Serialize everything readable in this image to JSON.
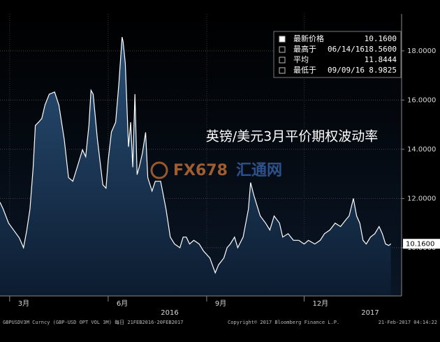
{
  "chart_data": {
    "type": "area",
    "title": "英镑/美元3月平价期权波动率",
    "watermark": [
      "FX678",
      "汇通网"
    ],
    "series": [
      {
        "name": "GBPUSDV3M Curncy",
        "color": "#ffffff",
        "x": [
          0,
          3,
          8,
          13,
          18,
          22,
          25,
          28,
          31,
          33,
          36,
          39,
          42,
          46,
          51,
          55,
          60,
          64,
          68,
          73,
          77,
          80,
          83,
          85,
          87,
          91,
          96,
          99,
          101,
          104,
          108,
          111,
          114,
          115,
          117,
          120,
          122,
          124,
          126,
          128,
          130,
          133,
          136,
          138,
          142,
          145,
          150,
          155,
          159,
          163,
          168,
          171,
          174,
          177,
          181,
          186,
          190,
          196,
          201,
          204,
          209,
          212,
          215,
          219,
          222,
          227,
          232,
          234,
          237,
          240,
          243,
          248,
          252,
          256,
          261,
          264,
          269,
          274,
          279,
          284,
          288,
          294,
          299,
          303,
          308,
          313,
          318,
          323,
          326,
          330,
          333,
          336,
          339,
          342,
          346,
          350,
          354,
          357,
          360,
          363,
          365
        ],
        "values": [
          11.85,
          11.57,
          11.0,
          10.7,
          10.4,
          10.0,
          10.7,
          11.57,
          13.27,
          14.97,
          15.1,
          15.25,
          15.8,
          16.24,
          16.33,
          15.8,
          14.4,
          12.85,
          12.7,
          13.4,
          13.98,
          13.7,
          14.97,
          16.4,
          16.24,
          14.4,
          12.56,
          12.42,
          13.55,
          14.7,
          15.1,
          16.67,
          18.56,
          18.37,
          17.5,
          14.1,
          15.1,
          13.27,
          16.24,
          12.97,
          13.27,
          13.84,
          14.69,
          12.85,
          12.3,
          12.7,
          12.7,
          11.57,
          10.43,
          10.15,
          10.0,
          10.43,
          10.43,
          10.15,
          10.3,
          10.15,
          9.87,
          9.58,
          8.98,
          9.3,
          9.58,
          10.0,
          10.15,
          10.43,
          10.0,
          10.43,
          11.57,
          12.65,
          12.14,
          11.71,
          11.29,
          11.0,
          10.72,
          11.29,
          11.0,
          10.43,
          10.57,
          10.3,
          10.3,
          10.15,
          10.3,
          10.15,
          10.3,
          10.57,
          10.72,
          11.0,
          10.86,
          11.14,
          11.29,
          12.0,
          11.29,
          11.0,
          10.3,
          10.15,
          10.43,
          10.57,
          10.86,
          10.57,
          10.15,
          10.09,
          10.16
        ]
      }
    ],
    "xlim": [
      0,
      375
    ],
    "xticks": [
      {
        "value": 9,
        "label": "3月"
      },
      {
        "value": 101,
        "label": "6月"
      },
      {
        "value": 193,
        "label": "9月"
      },
      {
        "value": 284,
        "label": "12月"
      }
    ],
    "x_year_labels": [
      "2016",
      "2017"
    ],
    "ylim": [
      8.04,
      19.5
    ],
    "yticks": [
      {
        "value": 10,
        "label": "10.0000"
      },
      {
        "value": 12,
        "label": "12.0000"
      },
      {
        "value": 14,
        "label": "14.0000"
      },
      {
        "value": 16,
        "label": "16.0000"
      },
      {
        "value": 18,
        "label": "18.0000"
      }
    ],
    "legend": [
      {
        "label": "最新价格",
        "value": "10.1600"
      },
      {
        "label": "最高于",
        "date": "06/14/16",
        "value": "18.5600"
      },
      {
        "label": "平均",
        "value": "11.8444"
      },
      {
        "label": "最低于",
        "date": "09/09/16",
        "value": "8.9825"
      }
    ],
    "footer": [
      "GBPUSDV3M Curncy (GBP-USD OPT VOL 3M) 每日 21FEB2016-20FEB2017",
      "Copyright© 2017 Bloomberg Finance L.P.",
      "21-Feb-2017 04:14:22"
    ]
  }
}
